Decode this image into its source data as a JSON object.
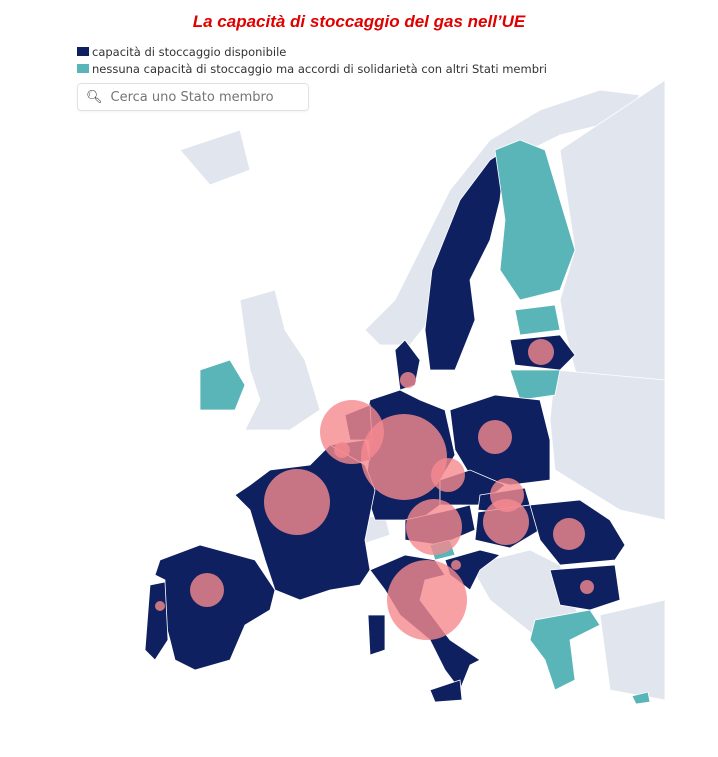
{
  "title": "La capacità di stoccaggio del gas nell’UE",
  "legend": [
    {
      "label": "capacità di stoccaggio disponibile",
      "color": "#0f2060"
    },
    {
      "label": "nessuna capacità di stoccaggio ma accordi di solidarietà con altri Stati membri",
      "color": "#5ab5b8"
    }
  ],
  "search": {
    "placeholder": "Cerca uno Stato membro",
    "icon": "search-icon"
  },
  "colors": {
    "storage": "#0f2060",
    "solidarity": "#5ab5b8",
    "non_eu": "#e1e5ee",
    "bubble": "#f58a8f"
  },
  "countries": [
    {
      "name": "Sweden",
      "category": "storage"
    },
    {
      "name": "Finland",
      "category": "solidarity"
    },
    {
      "name": "Estonia",
      "category": "solidarity"
    },
    {
      "name": "Latvia",
      "category": "storage"
    },
    {
      "name": "Lithuania",
      "category": "solidarity"
    },
    {
      "name": "Poland",
      "category": "storage"
    },
    {
      "name": "Germany",
      "category": "storage"
    },
    {
      "name": "Denmark",
      "category": "storage"
    },
    {
      "name": "Netherlands",
      "category": "storage"
    },
    {
      "name": "Belgium",
      "category": "storage"
    },
    {
      "name": "Luxembourg",
      "category": "solidarity"
    },
    {
      "name": "France",
      "category": "storage"
    },
    {
      "name": "Austria",
      "category": "storage"
    },
    {
      "name": "Czechia",
      "category": "storage"
    },
    {
      "name": "Slovakia",
      "category": "storage"
    },
    {
      "name": "Hungary",
      "category": "storage"
    },
    {
      "name": "Slovenia",
      "category": "solidarity"
    },
    {
      "name": "Croatia",
      "category": "storage"
    },
    {
      "name": "Romania",
      "category": "storage"
    },
    {
      "name": "Bulgaria",
      "category": "storage"
    },
    {
      "name": "Greece",
      "category": "solidarity"
    },
    {
      "name": "Italy",
      "category": "storage"
    },
    {
      "name": "Spain",
      "category": "storage"
    },
    {
      "name": "Portugal",
      "category": "storage"
    },
    {
      "name": "Ireland",
      "category": "solidarity"
    },
    {
      "name": "Cyprus",
      "category": "solidarity"
    }
  ]
}
